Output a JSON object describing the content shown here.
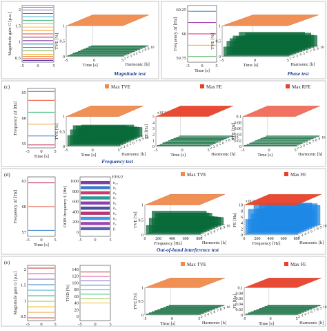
{
  "panels": {
    "a": {
      "tag": "",
      "title": "Magnitude test",
      "line_colors": [
        "#d94f9a",
        "#8a5cc2",
        "#2f7fd1",
        "#28a8c9",
        "#2bb673",
        "#9bc53d",
        "#e8c12b",
        "#f39a2b",
        "#e8462b",
        "#c2185b",
        "#6a1b9a",
        "#1565c0",
        "#00897b",
        "#7cb342",
        "#f9a825",
        "#ef6c00",
        "#c62828",
        "#5e35b1"
      ],
      "line_fracs": [
        0.03,
        0.08,
        0.14,
        0.2,
        0.26,
        0.32,
        0.38,
        0.44,
        0.5,
        0.56,
        0.62,
        0.68,
        0.74,
        0.8,
        0.86,
        0.9,
        0.94,
        0.97
      ],
      "charts": [
        {
          "key": "line",
          "type": "line",
          "ylabel": "Magnitude gain G [p.u.]",
          "yticks": [
            "2",
            "1.5",
            "1",
            "0.5"
          ],
          "xlabel": "",
          "xticks": [
            "-5",
            "0",
            "5"
          ],
          "ylim": [
            0.4,
            2.1
          ]
        },
        {
          "key": "surface",
          "type": "area",
          "zlabel": "TVE [%]",
          "zticks": [
            "1",
            "0.5",
            "0"
          ],
          "xlabel": "Time [s]",
          "xticks": [
            "-5",
            "0",
            "5"
          ],
          "ylabel": "Harmonic [h]",
          "yticks": [
            "1",
            "2",
            "3",
            "4",
            "5",
            "6",
            "7",
            "8",
            "9",
            "10"
          ],
          "top_color": "#f08a4b",
          "spike_color": "#0a6b3a",
          "spike_heights": [
            0.02,
            0.02,
            0.03,
            0.02,
            0.02,
            0.03,
            0.02,
            0.02,
            0.03,
            0.02
          ]
        }
      ]
    },
    "b": {
      "tag": "",
      "title": "Phase test",
      "line_colors": [
        "#2f7fd1",
        "#9c27b0",
        "#e91e63",
        "#ff9800",
        "#4caf50"
      ],
      "line_fracs": [
        0.1,
        0.3,
        0.5,
        0.7,
        0.9
      ],
      "charts": [
        {
          "key": "line",
          "type": "line",
          "ylabel": "Frequency Δf [Hz]",
          "yticks": [
            "60.25",
            "60",
            "59.75"
          ],
          "xlabel": "Time [s]",
          "xticks": [
            "-5",
            "0",
            "5"
          ]
        },
        {
          "key": "surface",
          "type": "area",
          "zlabel": "TVE [%]",
          "zticks": [
            "1",
            "0.5",
            "0"
          ],
          "xlabel": "Time [s]",
          "xticks": [
            "-5",
            "0",
            "5"
          ],
          "ylabel": "Harmonic [h]",
          "yticks": [
            "1",
            "2",
            "3",
            "4",
            "5",
            "6",
            "7",
            "8",
            "9",
            "10"
          ],
          "top_color": "#f08a4b",
          "spike_color": "#0a6b3a",
          "spike_heights": [
            0.3,
            0.45,
            0.5,
            0.55,
            0.5,
            0.6,
            0.45,
            0.5,
            0.4,
            0.35
          ]
        }
      ]
    },
    "c": {
      "tag": "(c)",
      "title": "Frequency test",
      "line_colors": [
        "#8a5cc2",
        "#e8462b",
        "#2bb673",
        "#f39a2b",
        "#2f7fd1",
        "#c2185b"
      ],
      "line_fracs": [
        0.05,
        0.2,
        0.4,
        0.6,
        0.8,
        0.95
      ],
      "legend_tve": "Max TVE",
      "legend_fe": "Max FE",
      "legend_rfe": "Max RFE",
      "charts": [
        {
          "key": "line",
          "type": "line",
          "ylabel": "Frequency Δf [Hz]",
          "yticks": [
            "65",
            "60",
            "55"
          ],
          "xlabel": "Time [s]",
          "xticks": [
            "-5",
            "0",
            "5"
          ],
          "ylim": [
            52,
            67
          ]
        },
        {
          "key": "tve",
          "type": "area",
          "zlabel": "TVE [%]",
          "zticks": [
            "1",
            "0.5",
            "0"
          ],
          "xlabel": "Time [s]",
          "xticks": [
            "-5",
            "0",
            "5"
          ],
          "ylabel": "Harmonic [h]",
          "yticks": [
            "2",
            "3",
            "4",
            "5",
            "6",
            "7",
            "8",
            "9",
            "10"
          ],
          "top_color": "#f08a4b",
          "spike_color": "#0a6b3a",
          "spike_heights": [
            0.35,
            0.5,
            0.6,
            0.55,
            0.45,
            0.5,
            0.4,
            0.35,
            0.3
          ]
        },
        {
          "key": "fe",
          "type": "area",
          "zlabel": "FE [Hz]",
          "zscale": "x10⁻³",
          "zticks": [
            "5",
            "4",
            "3",
            "2",
            "1",
            "0"
          ],
          "xlabel": "Time [s]",
          "xticks": [
            "-5",
            "0",
            "5"
          ],
          "ylabel": "Harmonic [h]",
          "yticks": [
            "2",
            "3",
            "4",
            "5",
            "6",
            "7",
            "8",
            "9",
            "10"
          ],
          "top_color": "#e8402b",
          "spike_color": "#0a6b3a",
          "spike_heights": [
            0.02,
            0.02,
            0.03,
            0.02,
            0.02,
            0.03,
            0.02,
            0.02,
            0.02
          ]
        },
        {
          "key": "rfe",
          "type": "area",
          "zlabel": "RFE [Hz]",
          "zticks": [
            "0.1",
            "0.08",
            "0.06",
            "0.04",
            "0.02",
            "0"
          ],
          "xlabel": "Time [s]",
          "xticks": [
            "-5",
            "0",
            "5"
          ],
          "ylabel": "Harmonic [h]",
          "yticks": [
            "2",
            "3",
            "4",
            "5",
            "6",
            "7",
            "8",
            "9",
            "10"
          ],
          "top_color": "#f06a5b",
          "spike_color": "#0a6b3a",
          "spike_heights": [
            0.02,
            0.02,
            0.02,
            0.02,
            0.02,
            0.02,
            0.02,
            0.02,
            0.02
          ]
        }
      ]
    },
    "d": {
      "tag": "(d)",
      "title": "Out-of-band interference test",
      "line_colors": [
        "#c2185b",
        "#e8462b",
        "#2f7fd1"
      ],
      "line_fracs": [
        0.1,
        0.5,
        0.9
      ],
      "legend_tve": "Max TVE",
      "legend_fe": "Max FE",
      "fps_label": "FPS/2",
      "harmonic_labels": [
        "h₁₀",
        "h₉",
        "h₈",
        "h₇",
        "h₆",
        "h₅",
        "h₄",
        "h₃",
        "h₂",
        "f₀"
      ],
      "oob_colors": [
        "#6a1b9a",
        "#1565c0",
        "#c2185b",
        "#00897b",
        "#7b1fa2",
        "#283593",
        "#ad1457",
        "#1e88e5",
        "#8e24aa",
        "#3949ab"
      ],
      "charts": [
        {
          "key": "line",
          "type": "line",
          "ylabel": "Frequency Δf [Hz]",
          "yticks": [
            "63",
            "60",
            "57"
          ],
          "xlabel": "Time [s]",
          "xticks": [
            "-5",
            "0",
            "5"
          ]
        },
        {
          "key": "oob",
          "type": "line",
          "ylabel": "OOB frequency fᵢ [Hz]",
          "yticks": [
            "1000",
            "800",
            "600",
            "400",
            "200",
            "0"
          ],
          "xlabel": "",
          "xticks": [
            "-5",
            "0",
            "5"
          ],
          "ylim": [
            0,
            1050
          ]
        },
        {
          "key": "tve",
          "type": "area",
          "zlabel": "TVE [%]",
          "zticks": [
            "1",
            "0.5",
            "0"
          ],
          "xlabel": "Frequency [Hz]",
          "xticks": [
            "0",
            "200",
            "400",
            "600",
            "800"
          ],
          "ylabel": "Harmonic [h]",
          "yticks": [
            "2",
            "3",
            "4",
            "5",
            "6",
            "7",
            "8",
            "9",
            "10"
          ],
          "top_color": "#f08a4b",
          "spike_color": "#0a6b3a",
          "spike_heights": [
            0.3,
            0.5,
            0.7,
            0.6,
            0.55,
            0.4,
            0.35,
            0.3,
            0.25
          ]
        },
        {
          "key": "fe",
          "type": "area",
          "zlabel": "FE [Hz]",
          "zscale": "x10⁻³",
          "zticks": [
            "10",
            "8",
            "6",
            "4",
            "2",
            "0"
          ],
          "xlabel": "Frequency [Hz]",
          "xticks": [
            "0",
            "200",
            "400",
            "600",
            "800"
          ],
          "ylabel": "Harmonic [h]",
          "yticks": [
            "2",
            "3",
            "4",
            "5",
            "6",
            "7",
            "8",
            "9",
            "10"
          ],
          "top_color": "#e8402b",
          "spike_color": "#1e88e5",
          "spike_heights": [
            0.5,
            0.8,
            0.6,
            0.9,
            0.7,
            0.85,
            0.6,
            0.75,
            0.65
          ]
        }
      ]
    },
    "e": {
      "tag": "(e)",
      "title": "",
      "line_colors": [
        "#c62828",
        "#d94f9a",
        "#8a5cc2",
        "#2f7fd1",
        "#28a8c9",
        "#2bb673",
        "#9bc53d",
        "#e8c12b",
        "#f39a2b",
        "#e8462b"
      ],
      "line_fracs": [
        0.05,
        0.15,
        0.25,
        0.35,
        0.45,
        0.55,
        0.65,
        0.75,
        0.85,
        0.95
      ],
      "legend_tve": "Max TVE",
      "legend_fe": "Max FE",
      "charts": [
        {
          "key": "line",
          "type": "line",
          "ylabel": "Magnitude gain G [p.u.]",
          "yticks": [
            "2",
            "1.5",
            "1",
            "0.5"
          ],
          "xlabel": "",
          "xticks": [
            "-5",
            "0",
            "5"
          ]
        },
        {
          "key": "thd",
          "type": "line",
          "ylabel": "THD [%]",
          "yticks": [
            "140",
            "120",
            "100",
            "80",
            "60",
            "40",
            "20",
            "0"
          ],
          "xlabel": "",
          "xticks": [
            "-5",
            "0",
            "5"
          ]
        },
        {
          "key": "tve",
          "type": "area",
          "zlabel": "TVE [%]",
          "zticks": [
            "1",
            "0.5",
            "0"
          ],
          "xlabel": "Time [s]",
          "xticks": [
            "-5",
            "0",
            "5"
          ],
          "ylabel": "Harmonic [h]",
          "yticks": [
            "2",
            "3",
            "4",
            "5",
            "6",
            "7",
            "8",
            "9",
            "10"
          ],
          "top_color": "#f08a4b",
          "spike_color": "#0a6b3a",
          "spike_heights": [
            0.03,
            0.03,
            0.03,
            0.03,
            0.03,
            0.03,
            0.03,
            0.03,
            0.03
          ]
        },
        {
          "key": "fe",
          "type": "area",
          "zlabel": "FE [Hz]",
          "zticks": [
            "0.1",
            "0.08",
            "0.06",
            "0.04",
            "0.02",
            "0"
          ],
          "xlabel": "Time [s]",
          "xticks": [
            "-5",
            "0",
            "5"
          ],
          "ylabel": "Harmonic [h]",
          "yticks": [
            "2",
            "3",
            "4",
            "5",
            "6",
            "7",
            "8",
            "9",
            "10"
          ],
          "top_color": "#e8402b",
          "spike_color": "#0a6b3a",
          "spike_heights": [
            0.03,
            0.03,
            0.03,
            0.03,
            0.03,
            0.03,
            0.03,
            0.03,
            0.03
          ]
        }
      ]
    }
  },
  "chart_data": [
    {
      "type": "line",
      "panel": "a",
      "ylabel": "Magnitude gain G [p.u.]",
      "x": [
        -5,
        0,
        5
      ],
      "xticks": [
        "-5",
        "0",
        "5"
      ],
      "yticks": [
        "2",
        "1.5",
        "1",
        "0.5"
      ],
      "ylim": [
        0.4,
        2.1
      ],
      "series": [
        {
          "values": [
            2.0,
            2.0,
            2.0
          ]
        },
        {
          "values": [
            1.9,
            1.9,
            1.9
          ]
        },
        {
          "values": [
            1.8,
            1.8,
            1.8
          ]
        },
        {
          "values": [
            1.7,
            1.7,
            1.7
          ]
        },
        {
          "values": [
            1.6,
            1.6,
            1.6
          ]
        },
        {
          "values": [
            1.5,
            1.5,
            1.5
          ]
        },
        {
          "values": [
            1.4,
            1.4,
            1.4
          ]
        },
        {
          "values": [
            1.3,
            1.3,
            1.3
          ]
        },
        {
          "values": [
            1.2,
            1.2,
            1.2
          ]
        },
        {
          "values": [
            1.1,
            1.1,
            1.1
          ]
        },
        {
          "values": [
            1.0,
            1.0,
            1.0
          ]
        },
        {
          "values": [
            0.9,
            0.9,
            0.9
          ]
        },
        {
          "values": [
            0.8,
            0.8,
            0.8
          ]
        },
        {
          "values": [
            0.7,
            0.7,
            0.7
          ]
        },
        {
          "values": [
            0.6,
            0.6,
            0.6
          ]
        },
        {
          "values": [
            0.5,
            0.5,
            0.5
          ]
        }
      ]
    },
    {
      "type": "area",
      "panel": "a",
      "zlabel": "TVE [%]",
      "xlabel": "Time [s]",
      "ylabel": "Harmonic [h]",
      "note": "flat maximum surface near 1% with small green residuals"
    },
    {
      "type": "line",
      "panel": "b",
      "ylabel": "Frequency Δf [Hz]",
      "yticks": [
        "60.25",
        "60",
        "59.75"
      ],
      "xlabel": "Time [s]"
    },
    {
      "type": "area",
      "panel": "b",
      "zlabel": "TVE [%]",
      "xlabel": "Time [s]",
      "ylabel": "Harmonic [h]"
    },
    {
      "type": "line",
      "panel": "c",
      "ylabel": "Frequency Δf [Hz]",
      "yticks": [
        "65",
        "60",
        "55"
      ],
      "xlabel": "Time [s]",
      "ylim": [
        52,
        67
      ]
    },
    {
      "type": "area",
      "panel": "c",
      "zlabel": "TVE [%]",
      "legend": [
        "Max TVE"
      ]
    },
    {
      "type": "area",
      "panel": "c",
      "zlabel": "FE [Hz]",
      "legend": [
        "Max FE"
      ]
    },
    {
      "type": "area",
      "panel": "c",
      "zlabel": "RFE [Hz]",
      "legend": [
        "Max RFE"
      ]
    },
    {
      "type": "line",
      "panel": "d",
      "ylabel": "Frequency Δf [Hz]",
      "yticks": [
        "63",
        "60",
        "57"
      ]
    },
    {
      "type": "line",
      "panel": "d",
      "ylabel": "OOB frequency fᵢ [Hz]",
      "yticks": [
        "1000",
        "800",
        "600",
        "400",
        "200",
        "0"
      ]
    },
    {
      "type": "area",
      "panel": "d",
      "zlabel": "TVE [%]",
      "xlabel": "Frequency [Hz]",
      "legend": [
        "Max TVE"
      ]
    },
    {
      "type": "area",
      "panel": "d",
      "zlabel": "FE [Hz]",
      "xlabel": "Frequency [Hz]",
      "legend": [
        "Max FE"
      ]
    },
    {
      "type": "line",
      "panel": "e",
      "ylabel": "Magnitude gain G [p.u.]",
      "yticks": [
        "2",
        "1.5",
        "1",
        "0.5"
      ]
    },
    {
      "type": "line",
      "panel": "e",
      "ylabel": "THD [%]",
      "yticks": [
        "140",
        "120",
        "100",
        "80",
        "60",
        "40",
        "20",
        "0"
      ]
    },
    {
      "type": "area",
      "panel": "e",
      "zlabel": "TVE [%]",
      "legend": [
        "Max TVE"
      ]
    },
    {
      "type": "area",
      "panel": "e",
      "zlabel": "FE [Hz]",
      "legend": [
        "Max FE"
      ]
    }
  ]
}
